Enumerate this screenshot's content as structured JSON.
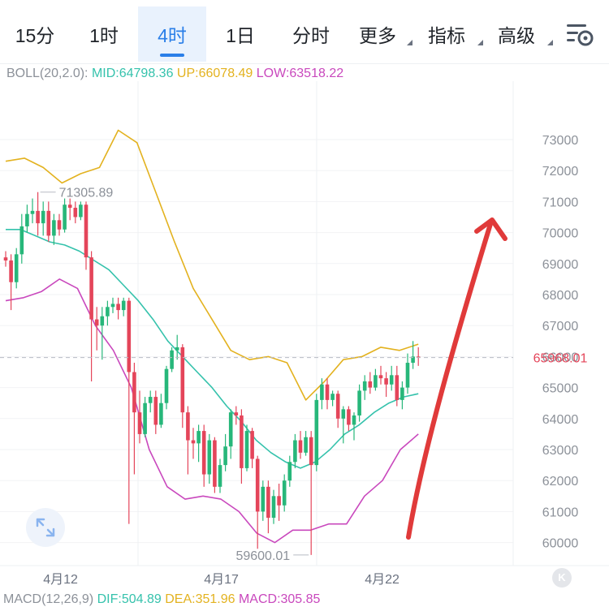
{
  "tabs": [
    {
      "label": "15分",
      "active": false
    },
    {
      "label": "1时",
      "active": false
    },
    {
      "label": "4时",
      "active": true
    },
    {
      "label": "1日",
      "active": false
    },
    {
      "label": "分时",
      "active": false
    },
    {
      "label": "更多",
      "active": false
    },
    {
      "label": "指标",
      "active": false
    },
    {
      "label": "高级",
      "active": false
    }
  ],
  "boll": {
    "name": "BOLL(20,2.0):",
    "mid": "MID:64798.36",
    "up": "UP:66078.49",
    "low": "LOW:63518.22"
  },
  "macd": {
    "name": "MACD(12,26,9)",
    "dif": "DIF:504.89",
    "dea": "DEA:351.96",
    "macd": "MACD:305.85"
  },
  "colors": {
    "up_candle": "#27b77a",
    "down_candle": "#e4455a",
    "mid_line": "#35c2ac",
    "up_line": "#e3b21f",
    "low_line": "#c948bd",
    "arrow": "#e03a3a",
    "active_tab": "#2a7fe8"
  },
  "chart_data": {
    "type": "candlestick",
    "y_ticks": [
      "73000",
      "72000",
      "71000",
      "70000",
      "69000",
      "68000",
      "67000",
      "66000",
      "65000",
      "64000",
      "63000",
      "62000",
      "61000",
      "60000"
    ],
    "x_ticks": [
      {
        "label": "4月12",
        "index": 6
      },
      {
        "label": "4月17",
        "index": 36
      },
      {
        "label": "4月22",
        "index": 66
      }
    ],
    "last_price": "65968.01",
    "high_label": "71305.89",
    "low_label": "59600.01",
    "annotation": "red-arrow-up",
    "candles": [
      [
        69200,
        69100,
        69400,
        68900
      ],
      [
        69100,
        68400,
        69300,
        67500
      ],
      [
        68400,
        69300,
        69500,
        68200
      ],
      [
        69300,
        70200,
        70600,
        69000
      ],
      [
        70200,
        70600,
        70900,
        70000
      ],
      [
        70600,
        70700,
        71100,
        70300
      ],
      [
        70700,
        70300,
        71306,
        69900
      ],
      [
        70300,
        70700,
        71000,
        69900
      ],
      [
        70700,
        69900,
        71000,
        69700
      ],
      [
        69900,
        70400,
        70600,
        69600
      ],
      [
        70400,
        70100,
        70600,
        69900
      ],
      [
        70100,
        70900,
        71100,
        70000
      ],
      [
        70900,
        70800,
        71100,
        70400
      ],
      [
        70800,
        70500,
        71000,
        70300
      ],
      [
        70500,
        70900,
        71000,
        70400
      ],
      [
        70900,
        69200,
        71000,
        68800
      ],
      [
        69200,
        67200,
        69400,
        65200
      ],
      [
        67200,
        67000,
        67600,
        66200
      ],
      [
        67000,
        67300,
        67600,
        65900
      ],
      [
        67300,
        67600,
        67800,
        67000
      ],
      [
        67600,
        67700,
        67900,
        67400
      ],
      [
        67700,
        67500,
        67900,
        67200
      ],
      [
        67500,
        67800,
        67900,
        67300
      ],
      [
        67800,
        65500,
        67900,
        60600
      ],
      [
        65500,
        64200,
        65800,
        62200
      ],
      [
        64200,
        63500,
        64900,
        63200
      ],
      [
        63500,
        64500,
        64700,
        63400
      ],
      [
        64500,
        64700,
        64900,
        64200
      ],
      [
        64700,
        63800,
        64900,
        63500
      ],
      [
        63800,
        64500,
        64800,
        63700
      ],
      [
        64500,
        65600,
        65700,
        64300
      ],
      [
        65600,
        66200,
        66300,
        65500
      ],
      [
        66200,
        66300,
        66700,
        65900
      ],
      [
        66300,
        64200,
        66400,
        63700
      ],
      [
        64200,
        63300,
        64400,
        62200
      ],
      [
        63300,
        63200,
        63700,
        62700
      ],
      [
        63200,
        63600,
        63800,
        62600
      ],
      [
        63600,
        62200,
        63800,
        61800
      ],
      [
        62200,
        63300,
        63500,
        61900
      ],
      [
        63300,
        61800,
        63400,
        61600
      ],
      [
        61800,
        62500,
        62700,
        61600
      ],
      [
        62500,
        63100,
        63500,
        62300
      ],
      [
        63100,
        64200,
        64300,
        62700
      ],
      [
        64200,
        64100,
        64400,
        63800
      ],
      [
        64100,
        62400,
        64300,
        61900
      ],
      [
        62400,
        63600,
        63800,
        62300
      ],
      [
        63600,
        62700,
        63700,
        62400
      ],
      [
        62700,
        61000,
        62800,
        59800
      ],
      [
        61000,
        61800,
        62000,
        60700
      ],
      [
        61800,
        60800,
        62000,
        60300
      ],
      [
        60800,
        61500,
        61700,
        60600
      ],
      [
        61500,
        61200,
        61900,
        60700
      ],
      [
        61200,
        62000,
        62200,
        61000
      ],
      [
        62000,
        62600,
        62800,
        61800
      ],
      [
        62600,
        63300,
        63500,
        62400
      ],
      [
        63300,
        62900,
        63600,
        62700
      ],
      [
        62900,
        63400,
        63600,
        62800
      ],
      [
        63400,
        62500,
        63600,
        59600
      ],
      [
        62500,
        64600,
        64800,
        62300
      ],
      [
        64600,
        65100,
        65300,
        64300
      ],
      [
        65100,
        64600,
        65300,
        64300
      ],
      [
        64600,
        64800,
        64900,
        64400
      ],
      [
        64800,
        64000,
        64900,
        63700
      ],
      [
        64000,
        64300,
        64400,
        63200
      ],
      [
        64300,
        63800,
        64400,
        63600
      ],
      [
        63800,
        64100,
        64200,
        63300
      ],
      [
        64100,
        64900,
        65100,
        63900
      ],
      [
        64900,
        65200,
        65400,
        64600
      ],
      [
        65200,
        65000,
        65500,
        64800
      ],
      [
        65000,
        65400,
        65600,
        64900
      ],
      [
        65400,
        65300,
        65700,
        65100
      ],
      [
        65300,
        65100,
        65500,
        64700
      ],
      [
        65100,
        65400,
        65700,
        64900
      ],
      [
        65400,
        64600,
        65700,
        64400
      ],
      [
        64600,
        65000,
        65200,
        64300
      ],
      [
        65000,
        65800,
        66100,
        64800
      ],
      [
        65800,
        66000,
        66500,
        65600
      ],
      [
        66000,
        65968,
        66300,
        65700
      ]
    ],
    "boll_mid": [
      70100,
      70100,
      69900,
      69700,
      69600,
      69400,
      69100,
      68800,
      68300,
      67800,
      67200,
      66500,
      66000,
      65500,
      65000,
      64400,
      63900,
      63300,
      62900,
      62600,
      62400,
      62600,
      63000,
      63500,
      63800,
      64200,
      64500,
      64700,
      64800
    ],
    "boll_up": [
      72300,
      72400,
      72100,
      71600,
      71900,
      72100,
      73300,
      72900,
      71300,
      69700,
      68200,
      67200,
      66200,
      65900,
      66000,
      65800,
      64600,
      65200,
      65900,
      66000,
      66300,
      66200,
      66400
    ],
    "boll_low": [
      67800,
      67900,
      68100,
      68500,
      68200,
      67000,
      66200,
      65000,
      63000,
      61800,
      61400,
      61500,
      61400,
      61000,
      60300,
      60000,
      60400,
      60400,
      60600,
      60600,
      61500,
      62000,
      63000,
      63500
    ]
  }
}
